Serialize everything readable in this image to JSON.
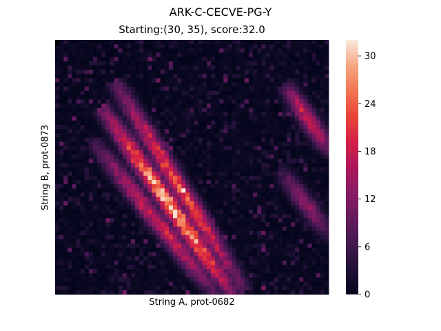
{
  "chart_data": {
    "type": "heatmap",
    "title": "ARK-C-CECVE-PG-Y",
    "subtitle": "Starting:(30, 35), score:32.0",
    "xlabel": "String A, prot-0682",
    "ylabel": "String B, prot-0873",
    "n_cols": 65,
    "n_rows": 60,
    "color_range": [
      0,
      32
    ],
    "colorbar_ticks": [
      0,
      6,
      12,
      18,
      24,
      30
    ],
    "colormap": "rocket",
    "max_value": 32.0,
    "max_cell": [
      30,
      35
    ],
    "score_diagonals": [
      {
        "start_col": 11,
        "start_row": 16,
        "end_col": 42,
        "end_row": 60,
        "peak": 32
      },
      {
        "start_col": 14,
        "start_row": 10,
        "end_col": 44,
        "end_row": 58,
        "peak": 24
      },
      {
        "start_col": 9,
        "start_row": 24,
        "end_col": 38,
        "end_row": 60,
        "peak": 20
      },
      {
        "start_col": 54,
        "start_row": 10,
        "end_col": 65,
        "end_row": 26,
        "peak": 20
      },
      {
        "start_col": 53,
        "start_row": 30,
        "end_col": 65,
        "end_row": 46,
        "peak": 14
      }
    ]
  }
}
